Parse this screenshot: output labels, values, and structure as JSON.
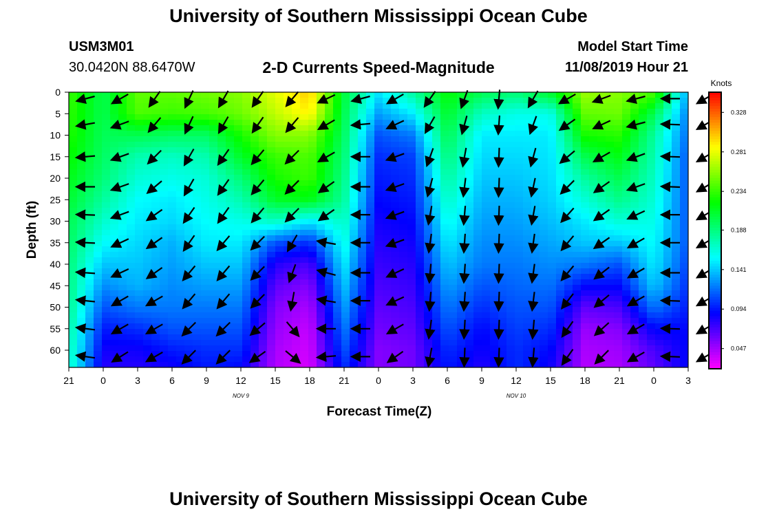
{
  "header": {
    "title": "University of Southern Mississippi Ocean Cube",
    "station_id": "USM3M01",
    "location": "30.0420N 88.6470W",
    "subtitle": "2-D Currents Speed-Magnitude",
    "model_start_label": "Model Start Time",
    "model_start_value": "11/08/2019 Hour 21",
    "footer_title": "University of Southern Mississippi Ocean Cube"
  },
  "chart_data": {
    "type": "heatmap",
    "title": "2-D Currents Speed-Magnitude",
    "xlabel": "Forecast Time(Z)",
    "ylabel": "Depth (ft)",
    "x_tick_labels": [
      "21",
      "0",
      "3",
      "6",
      "9",
      "12",
      "15",
      "18",
      "21",
      "0",
      "3",
      "6",
      "9",
      "12",
      "15",
      "18",
      "21",
      "0",
      "3"
    ],
    "date_labels": [
      {
        "label": "NOV 9",
        "tick_index": 5
      },
      {
        "label": "NOV 10",
        "tick_index": 13
      }
    ],
    "y_ticks": [
      0,
      5,
      10,
      15,
      20,
      25,
      30,
      35,
      40,
      45,
      50,
      55,
      60
    ],
    "ylim": [
      0,
      64
    ],
    "colorbar": {
      "unit": "Knots",
      "tick_labels": [
        "0.328",
        "0.281",
        "0.234",
        "0.188",
        "0.141",
        "0.094",
        "0.047"
      ],
      "range": [
        0.023,
        0.352
      ]
    },
    "x_hours": [
      0,
      3,
      6,
      9,
      12,
      15,
      18,
      21,
      24,
      27,
      30,
      33,
      36,
      39,
      42,
      45,
      48,
      51,
      54
    ],
    "depths": [
      0,
      5,
      10,
      15,
      20,
      25,
      30,
      35,
      40,
      45,
      50,
      55,
      60,
      64
    ],
    "speed": [
      [
        0.235,
        0.232,
        0.228,
        0.222,
        0.215,
        0.208,
        0.2,
        0.195,
        0.19,
        0.188,
        0.185,
        0.18,
        0.175,
        0.172
      ],
      [
        0.2,
        0.2,
        0.198,
        0.195,
        0.19,
        0.18,
        0.168,
        0.155,
        0.14,
        0.125,
        0.11,
        0.095,
        0.085,
        0.08
      ],
      [
        0.245,
        0.24,
        0.2,
        0.175,
        0.165,
        0.155,
        0.15,
        0.145,
        0.14,
        0.135,
        0.12,
        0.1,
        0.085,
        0.08
      ],
      [
        0.245,
        0.235,
        0.195,
        0.17,
        0.16,
        0.15,
        0.145,
        0.135,
        0.13,
        0.125,
        0.12,
        0.11,
        0.095,
        0.085
      ],
      [
        0.25,
        0.238,
        0.195,
        0.175,
        0.165,
        0.16,
        0.155,
        0.15,
        0.14,
        0.13,
        0.12,
        0.11,
        0.1,
        0.095
      ],
      [
        0.255,
        0.248,
        0.225,
        0.21,
        0.19,
        0.175,
        0.16,
        0.15,
        0.14,
        0.13,
        0.12,
        0.11,
        0.1,
        0.09
      ],
      [
        0.28,
        0.27,
        0.255,
        0.235,
        0.225,
        0.21,
        0.17,
        0.11,
        0.08,
        0.065,
        0.055,
        0.05,
        0.045,
        0.043
      ],
      [
        0.3,
        0.29,
        0.255,
        0.24,
        0.235,
        0.215,
        0.15,
        0.1,
        0.07,
        0.055,
        0.045,
        0.038,
        0.035,
        0.033
      ],
      [
        0.205,
        0.2,
        0.195,
        0.19,
        0.185,
        0.18,
        0.17,
        0.16,
        0.15,
        0.14,
        0.13,
        0.12,
        0.11,
        0.1
      ],
      [
        0.15,
        0.13,
        0.11,
        0.1,
        0.095,
        0.09,
        0.085,
        0.08,
        0.075,
        0.07,
        0.065,
        0.06,
        0.055,
        0.055
      ],
      [
        0.18,
        0.15,
        0.12,
        0.105,
        0.1,
        0.095,
        0.09,
        0.085,
        0.08,
        0.075,
        0.07,
        0.065,
        0.06,
        0.06
      ],
      [
        0.22,
        0.21,
        0.2,
        0.19,
        0.18,
        0.17,
        0.16,
        0.15,
        0.14,
        0.13,
        0.12,
        0.11,
        0.1,
        0.095
      ],
      [
        0.2,
        0.17,
        0.15,
        0.145,
        0.14,
        0.135,
        0.13,
        0.125,
        0.12,
        0.11,
        0.1,
        0.09,
        0.085,
        0.08
      ],
      [
        0.19,
        0.16,
        0.15,
        0.145,
        0.14,
        0.135,
        0.13,
        0.125,
        0.12,
        0.115,
        0.11,
        0.105,
        0.1,
        0.1
      ],
      [
        0.21,
        0.16,
        0.15,
        0.148,
        0.146,
        0.143,
        0.138,
        0.132,
        0.125,
        0.118,
        0.11,
        0.1,
        0.09,
        0.085
      ],
      [
        0.26,
        0.245,
        0.225,
        0.2,
        0.18,
        0.165,
        0.15,
        0.14,
        0.12,
        0.09,
        0.065,
        0.05,
        0.045,
        0.043
      ],
      [
        0.255,
        0.248,
        0.23,
        0.215,
        0.2,
        0.185,
        0.165,
        0.14,
        0.11,
        0.09,
        0.07,
        0.055,
        0.048,
        0.045
      ],
      [
        0.24,
        0.2,
        0.18,
        0.175,
        0.17,
        0.165,
        0.16,
        0.155,
        0.15,
        0.14,
        0.12,
        0.09,
        0.07,
        0.065
      ],
      [
        0.13,
        0.12,
        0.115,
        0.11,
        0.11,
        0.11,
        0.11,
        0.11,
        0.105,
        0.1,
        0.095,
        0.09,
        0.09,
        0.09
      ]
    ],
    "vectors": {
      "depths": [
        1.5,
        7.5,
        15,
        22,
        28.5,
        35,
        42,
        48.5,
        55,
        61.5
      ],
      "rows": [
        {
          "hour": 1.5,
          "angles": [
            195,
            190,
            185,
            180,
            178,
            177,
            176,
            174,
            173,
            172
          ]
        },
        {
          "hour": 4.5,
          "angles": [
            210,
            200,
            200,
            200,
            200,
            205,
            205,
            210,
            210,
            212
          ]
        },
        {
          "hour": 7.5,
          "angles": [
            235,
            230,
            225,
            220,
            215,
            215,
            215,
            210,
            210,
            210
          ]
        },
        {
          "hour": 10.5,
          "angles": [
            245,
            245,
            240,
            240,
            235,
            235,
            230,
            230,
            225,
            225
          ]
        },
        {
          "hour": 13.5,
          "angles": [
            240,
            240,
            235,
            235,
            235,
            230,
            230,
            230,
            225,
            225
          ]
        },
        {
          "hour": 16.5,
          "angles": [
            235,
            235,
            230,
            230,
            230,
            225,
            225,
            225,
            220,
            215
          ]
        },
        {
          "hour": 19.5,
          "angles": [
            230,
            230,
            225,
            225,
            225,
            240,
            250,
            260,
            310,
            320
          ]
        },
        {
          "hour": 22.5,
          "angles": [
            205,
            210,
            210,
            215,
            215,
            170,
            165,
            170,
            180,
            185
          ]
        },
        {
          "hour": 25.5,
          "angles": [
            195,
            185,
            180,
            180,
            180,
            180,
            180,
            180,
            180,
            180
          ]
        },
        {
          "hour": 28.5,
          "angles": [
            210,
            205,
            200,
            200,
            200,
            200,
            205,
            205,
            210,
            215
          ]
        },
        {
          "hour": 31.5,
          "angles": [
            235,
            240,
            250,
            255,
            260,
            262,
            265,
            265,
            262,
            260
          ]
        },
        {
          "hour": 34.5,
          "angles": [
            250,
            255,
            260,
            263,
            265,
            266,
            266,
            266,
            267,
            268
          ]
        },
        {
          "hour": 37.5,
          "angles": [
            265,
            266,
            268,
            268,
            268,
            268,
            268,
            268,
            268,
            268
          ]
        },
        {
          "hour": 40.5,
          "angles": [
            240,
            250,
            255,
            258,
            260,
            262,
            262,
            263,
            265,
            265
          ]
        },
        {
          "hour": 43.5,
          "angles": [
            210,
            215,
            220,
            225,
            228,
            230,
            230,
            232,
            235,
            235
          ]
        },
        {
          "hour": 46.5,
          "angles": [
            200,
            205,
            210,
            215,
            215,
            215,
            218,
            220,
            222,
            225
          ]
        },
        {
          "hour": 49.5,
          "angles": [
            195,
            195,
            200,
            200,
            205,
            210,
            210,
            210,
            210,
            210
          ]
        },
        {
          "hour": 52.5,
          "angles": [
            180,
            178,
            178,
            178,
            180,
            180,
            180,
            178,
            178,
            178
          ]
        },
        {
          "hour": 55.5,
          "angles": [
            210,
            210,
            210,
            210,
            210,
            210,
            210,
            210,
            210,
            210
          ]
        }
      ]
    }
  }
}
